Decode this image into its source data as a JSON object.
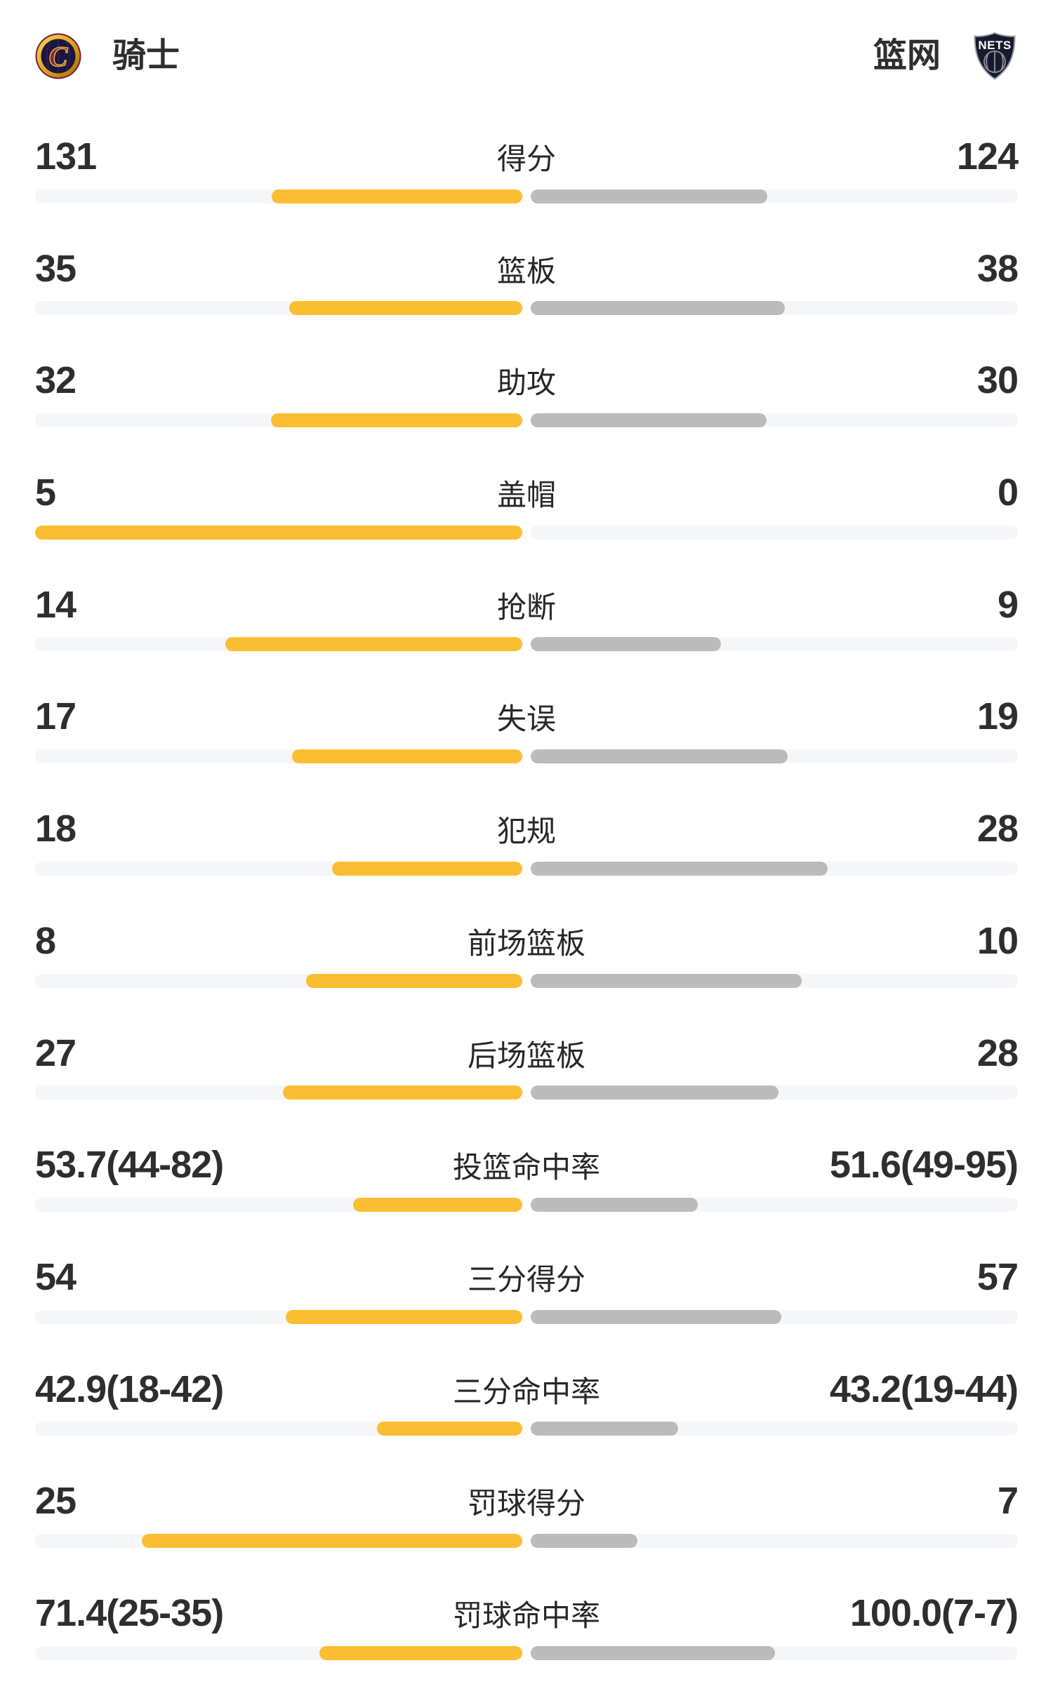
{
  "header": {
    "home": {
      "name": "骑士",
      "logo": "cavaliers-logo"
    },
    "away": {
      "name": "篮网",
      "logo": "nets-logo",
      "logo_text": "NETS"
    }
  },
  "colors": {
    "home_bar": "#fbbe32",
    "away_bar": "#bbbbbb",
    "bar_track": "#f5f6f7",
    "text": "#2e2e2e"
  },
  "chart_data": {
    "type": "bar",
    "orientation": "horizontal-paired-comparison",
    "teams": [
      "骑士",
      "篮网"
    ],
    "categories": [
      "得分",
      "篮板",
      "助攻",
      "盖帽",
      "抢断",
      "失误",
      "犯规",
      "前场篮板",
      "后场篮板",
      "投篮命中率",
      "三分得分",
      "三分命中率",
      "罚球得分",
      "罚球命中率"
    ],
    "series": [
      {
        "name": "骑士",
        "values": [
          131,
          35,
          32,
          5,
          14,
          17,
          18,
          8,
          27,
          53.7,
          54,
          42.9,
          25,
          71.4
        ]
      },
      {
        "name": "篮网",
        "values": [
          124,
          38,
          30,
          0,
          9,
          19,
          28,
          10,
          28,
          51.6,
          57,
          43.2,
          7,
          100.0
        ]
      }
    ],
    "rows": [
      {
        "label": "得分",
        "left": "131",
        "right": "124",
        "left_fill": 51.4,
        "right_fill": 48.6
      },
      {
        "label": "篮板",
        "left": "35",
        "right": "38",
        "left_fill": 47.9,
        "right_fill": 52.1
      },
      {
        "label": "助攻",
        "left": "32",
        "right": "30",
        "left_fill": 51.6,
        "right_fill": 48.4
      },
      {
        "label": "盖帽",
        "left": "5",
        "right": "0",
        "left_fill": 100,
        "right_fill": 0
      },
      {
        "label": "抢断",
        "left": "14",
        "right": "9",
        "left_fill": 60.9,
        "right_fill": 39.1
      },
      {
        "label": "失误",
        "left": "17",
        "right": "19",
        "left_fill": 47.2,
        "right_fill": 52.8
      },
      {
        "label": "犯规",
        "left": "18",
        "right": "28",
        "left_fill": 39.1,
        "right_fill": 60.9
      },
      {
        "label": "前场篮板",
        "left": "8",
        "right": "10",
        "left_fill": 44.4,
        "right_fill": 55.6
      },
      {
        "label": "后场篮板",
        "left": "27",
        "right": "28",
        "left_fill": 49.1,
        "right_fill": 50.9
      },
      {
        "label": "投篮命中率",
        "left": "53.7(44-82)",
        "right": "51.6(49-95)",
        "left_fill": 34.8,
        "right_fill": 34.3
      },
      {
        "label": "三分得分",
        "left": "54",
        "right": "57",
        "left_fill": 48.6,
        "right_fill": 51.4
      },
      {
        "label": "三分命中率",
        "left": "42.9(18-42)",
        "right": "43.2(19-44)",
        "left_fill": 29.9,
        "right_fill": 30.2
      },
      {
        "label": "罚球得分",
        "left": "25",
        "right": "7",
        "left_fill": 78.1,
        "right_fill": 21.9
      },
      {
        "label": "罚球命中率",
        "left": "71.4(25-35)",
        "right": "100.0(7-7)",
        "left_fill": 41.7,
        "right_fill": 50.1
      }
    ]
  }
}
